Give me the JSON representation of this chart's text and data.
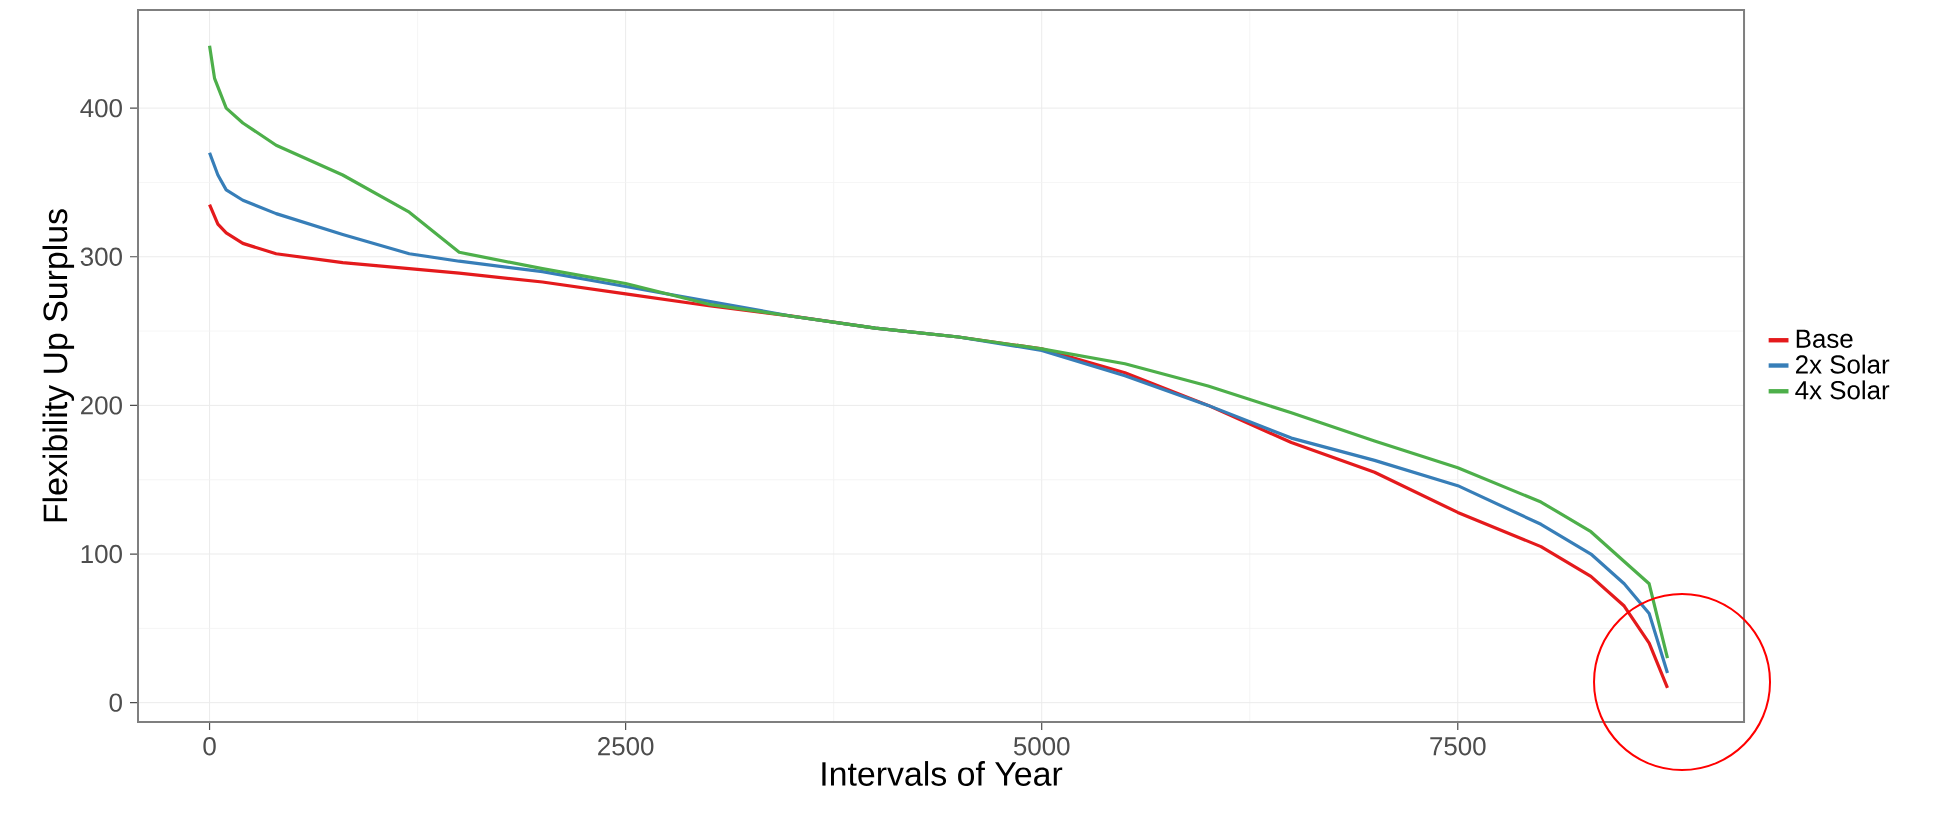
{
  "chart_data": {
    "type": "line",
    "xlabel": "Intervals of Year",
    "ylabel": "Flexibility Up Surplus",
    "xlim": [
      -430,
      9220
    ],
    "ylim": [
      -13,
      466
    ],
    "xticks": [
      0,
      2500,
      5000,
      7500
    ],
    "yticks": [
      0,
      100,
      200,
      300,
      400
    ],
    "grid": true,
    "legend": "right",
    "line_style": "solid",
    "marker": "none",
    "series": [
      {
        "name": "Base",
        "color": "#e41a1c",
        "x": [
          0,
          50,
          100,
          200,
          400,
          800,
          1500,
          2000,
          2500,
          3000,
          3500,
          4000,
          4500,
          5000,
          5500,
          6000,
          6500,
          7000,
          7500,
          8000,
          8300,
          8500,
          8650,
          8760
        ],
        "values": [
          335,
          322,
          316,
          309,
          302,
          296,
          289,
          283,
          275,
          267,
          260,
          252,
          246,
          238,
          222,
          200,
          175,
          155,
          128,
          105,
          85,
          65,
          40,
          10
        ]
      },
      {
        "name": "2x Solar",
        "color": "#377eb8",
        "x": [
          0,
          50,
          100,
          200,
          400,
          800,
          1200,
          1500,
          2000,
          2500,
          3000,
          3500,
          4000,
          4500,
          5000,
          5500,
          6000,
          6500,
          7000,
          7500,
          8000,
          8300,
          8500,
          8650,
          8760
        ],
        "values": [
          370,
          355,
          345,
          338,
          329,
          315,
          302,
          297,
          290,
          280,
          270,
          260,
          252,
          246,
          237,
          220,
          200,
          178,
          163,
          146,
          120,
          100,
          80,
          60,
          20
        ]
      },
      {
        "name": "4x Solar",
        "color": "#4daf4a",
        "x": [
          0,
          30,
          100,
          200,
          400,
          800,
          1200,
          1500,
          2000,
          2500,
          3000,
          3500,
          4000,
          4500,
          5000,
          5500,
          6000,
          6500,
          7000,
          7500,
          8000,
          8300,
          8500,
          8650,
          8760
        ],
        "values": [
          442,
          420,
          400,
          390,
          375,
          355,
          330,
          303,
          292,
          282,
          268,
          260,
          252,
          246,
          238,
          228,
          213,
          195,
          176,
          158,
          135,
          115,
          95,
          80,
          30
        ]
      }
    ]
  }
}
